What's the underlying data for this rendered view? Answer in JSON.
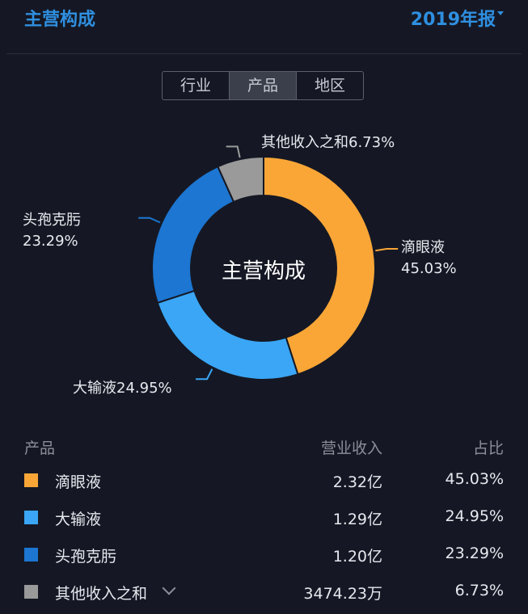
{
  "header": {
    "title": "主营构成",
    "period": "2019年报"
  },
  "tabs": [
    {
      "label": "行业",
      "active": false
    },
    {
      "label": "产品",
      "active": true
    },
    {
      "label": "地区",
      "active": false
    }
  ],
  "table": {
    "headers": {
      "name": "产品",
      "revenue": "营业收入",
      "share": "占比"
    },
    "rows": [
      {
        "name": "滴眼液",
        "revenue": "2.32亿",
        "share": "45.03%",
        "color": "#f9a637"
      },
      {
        "name": "大输液",
        "revenue": "1.29亿",
        "share": "24.95%",
        "color": "#3aa6f5"
      },
      {
        "name": "头孢克肟",
        "revenue": "1.20亿",
        "share": "23.29%",
        "color": "#1c76d2"
      },
      {
        "name": "其他收入之和",
        "revenue": "3474.23万",
        "share": "6.73%",
        "color": "#9a9a9a",
        "expandable": true
      }
    ]
  },
  "chart_data": {
    "type": "pie",
    "variant": "donut",
    "title": "主营构成",
    "series": [
      {
        "name": "滴眼液",
        "value": 45.03,
        "label": "45.03%",
        "color": "#f9a637"
      },
      {
        "name": "大输液",
        "value": 24.95,
        "label": "24.95%",
        "color": "#3aa6f5"
      },
      {
        "name": "头孢克肟",
        "value": 23.29,
        "label": "23.29%",
        "color": "#1c76d2"
      },
      {
        "name": "其他收入之和",
        "value": 6.73,
        "label": "6.73%",
        "color": "#9a9a9a"
      }
    ]
  }
}
